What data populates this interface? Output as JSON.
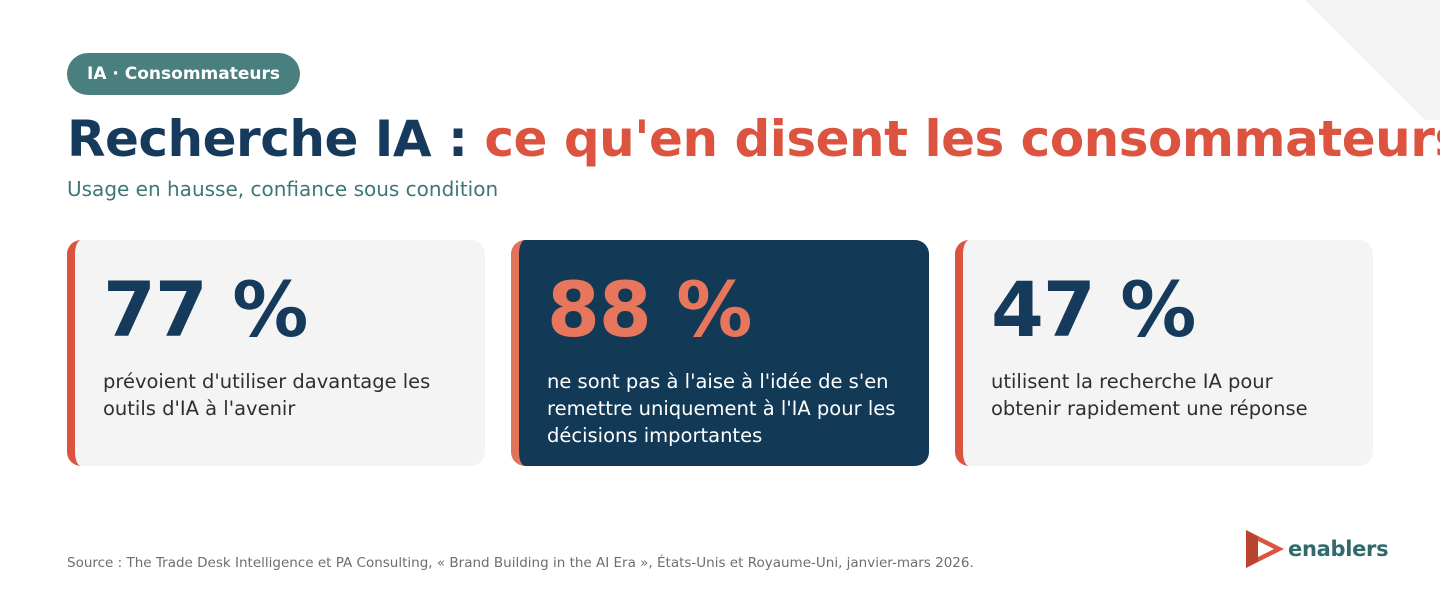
{
  "tag": "IA · Consommateurs",
  "title": {
    "part1": "Recherche IA : ",
    "part2": "ce qu'en disent les consommateurs"
  },
  "subtitle": "Usage en hausse, confiance sous condition",
  "cards": [
    {
      "stat": "77 %",
      "description": "prévoient d'utiliser davantage les outils d'IA à l'avenir"
    },
    {
      "stat": "88 %",
      "description": "ne sont pas à l'aise à l'idée de s'en remettre uniquement à l'IA pour les décisions importantes"
    },
    {
      "stat": "47 %",
      "description": "utilisent la recherche IA pour obtenir rapidement une réponse"
    }
  ],
  "source": "Source : The Trade Desk Intelligence et PA Consulting, « Brand Building in the AI Era », États-Unis et Royaume-Uni, janvier-mars 2026.",
  "logo": {
    "word": "enablers",
    "icon": "play-triangle-icon"
  },
  "colors": {
    "navy": "#153a5b",
    "coral": "#dc5440",
    "teal": "#4a7f7f",
    "dark_card": "#123a57",
    "light_card": "#f4f4f4"
  }
}
